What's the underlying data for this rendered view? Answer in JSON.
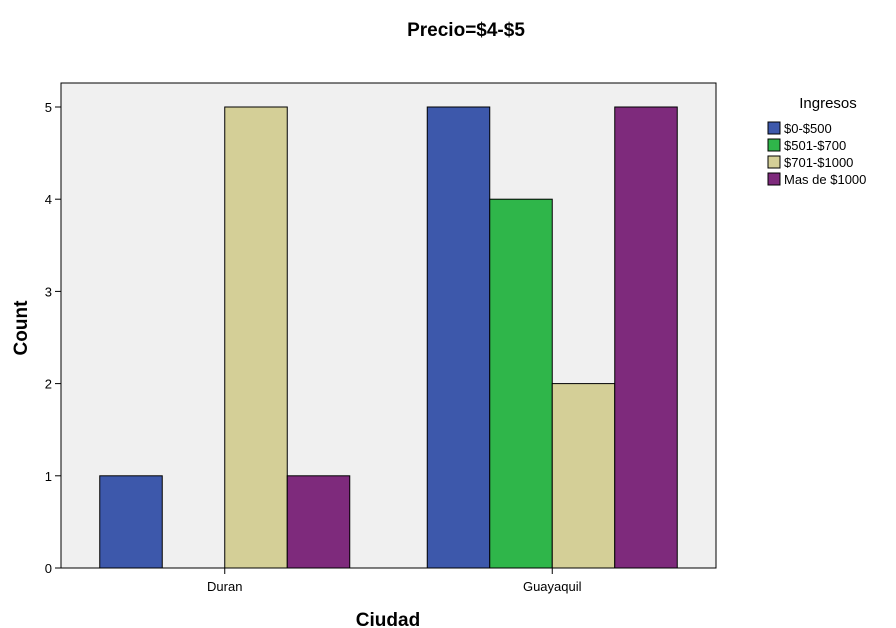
{
  "chart_data": {
    "type": "bar",
    "title": "Precio=$4-$5",
    "xlabel": "Ciudad",
    "ylabel": "Count",
    "categories": [
      "Duran",
      "Guayaquil"
    ],
    "ylim": [
      0,
      5
    ],
    "yticks": [
      "0",
      "1",
      "2",
      "3",
      "4",
      "5"
    ],
    "legend": {
      "title": "Ingresos",
      "position": "right"
    },
    "grid": false,
    "series": [
      {
        "name": "$0-$500",
        "color": "#3d58ab",
        "values": [
          1,
          5
        ]
      },
      {
        "name": "$501-$700",
        "color": "#2fb64a",
        "values": [
          0,
          4
        ]
      },
      {
        "name": "$701-$1000",
        "color": "#d4cf97",
        "values": [
          5,
          2
        ]
      },
      {
        "name": "Mas de $1000",
        "color": "#7e2a7c",
        "values": [
          1,
          5
        ]
      }
    ]
  }
}
